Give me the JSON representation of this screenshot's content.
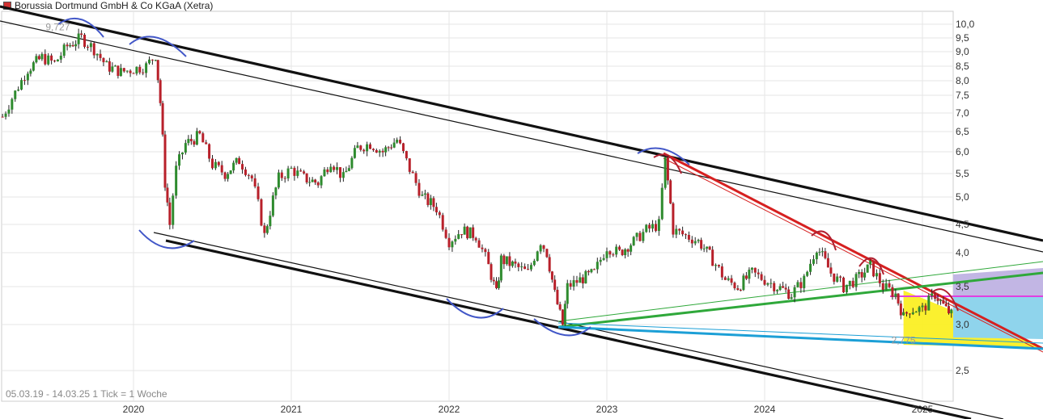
{
  "window": {
    "title": "Borussia Dortmund GmbH & Co KGaA (Xetra)"
  },
  "colors": {
    "marker": "#d03030",
    "up": "#2e8b2e",
    "down": "#b8202a",
    "wick": "#222222"
  },
  "chart_data": {
    "type": "candlestick",
    "title": "Borussia Dortmund GmbH & Co KGaA (Xetra)",
    "footer": "05.03.19 - 14.03.25   1 Tick = 1 Woche",
    "y_ticks": [
      "10,0",
      "9,5",
      "9,0",
      "8,5",
      "8,0",
      "7,5",
      "7,0",
      "6,5",
      "6,0",
      "5,5",
      "5,0",
      "4,5",
      "4,0",
      "3,5",
      "3,0",
      "2,5"
    ],
    "x_ticks": [
      "2020",
      "2021",
      "2022",
      "2023",
      "2024",
      "2025"
    ],
    "annotations": [
      {
        "text": "9,727",
        "x": 2019.52,
        "y": 9.727
      },
      {
        "text": "2,775",
        "x": 2024.88,
        "y": 2.775
      }
    ],
    "price_path": [
      [
        2019.17,
        6.9
      ],
      [
        2019.25,
        7.6
      ],
      [
        2019.33,
        8.4
      ],
      [
        2019.42,
        8.8
      ],
      [
        2019.5,
        8.6
      ],
      [
        2019.58,
        9.2
      ],
      [
        2019.67,
        9.5
      ],
      [
        2019.75,
        9.1
      ],
      [
        2019.83,
        8.5
      ],
      [
        2019.92,
        8.3
      ],
      [
        2020.0,
        8.4
      ],
      [
        2020.08,
        8.5
      ],
      [
        2020.14,
        8.9
      ],
      [
        2020.17,
        7.3
      ],
      [
        2020.2,
        5.3
      ],
      [
        2020.23,
        4.5
      ],
      [
        2020.27,
        5.6
      ],
      [
        2020.33,
        6.2
      ],
      [
        2020.42,
        6.4
      ],
      [
        2020.5,
        5.7
      ],
      [
        2020.58,
        5.5
      ],
      [
        2020.67,
        5.8
      ],
      [
        2020.75,
        5.4
      ],
      [
        2020.83,
        4.3
      ],
      [
        2020.92,
        5.4
      ],
      [
        2021.0,
        5.6
      ],
      [
        2021.08,
        5.4
      ],
      [
        2021.17,
        5.3
      ],
      [
        2021.25,
        5.8
      ],
      [
        2021.33,
        5.4
      ],
      [
        2021.42,
        6.1
      ],
      [
        2021.5,
        6.2
      ],
      [
        2021.58,
        6.0
      ],
      [
        2021.67,
        6.3
      ],
      [
        2021.75,
        5.6
      ],
      [
        2021.83,
        5.0
      ],
      [
        2021.92,
        4.8
      ],
      [
        2022.0,
        4.2
      ],
      [
        2022.08,
        4.4
      ],
      [
        2022.17,
        4.3
      ],
      [
        2022.25,
        3.8
      ],
      [
        2022.3,
        3.4
      ],
      [
        2022.33,
        3.9
      ],
      [
        2022.42,
        3.8
      ],
      [
        2022.5,
        3.7
      ],
      [
        2022.58,
        4.2
      ],
      [
        2022.62,
        4.0
      ],
      [
        2022.67,
        3.4
      ],
      [
        2022.72,
        3.0
      ],
      [
        2022.75,
        3.5
      ],
      [
        2022.83,
        3.6
      ],
      [
        2022.92,
        3.7
      ],
      [
        2023.0,
        4.1
      ],
      [
        2023.08,
        4.0
      ],
      [
        2023.17,
        4.2
      ],
      [
        2023.25,
        4.4
      ],
      [
        2023.33,
        4.5
      ],
      [
        2023.37,
        5.8
      ],
      [
        2023.42,
        4.4
      ],
      [
        2023.5,
        4.3
      ],
      [
        2023.58,
        4.2
      ],
      [
        2023.67,
        3.9
      ],
      [
        2023.75,
        3.6
      ],
      [
        2023.83,
        3.5
      ],
      [
        2023.92,
        3.7
      ],
      [
        2024.0,
        3.6
      ],
      [
        2024.08,
        3.5
      ],
      [
        2024.17,
        3.4
      ],
      [
        2024.25,
        3.6
      ],
      [
        2024.33,
        4.1
      ],
      [
        2024.42,
        3.7
      ],
      [
        2024.5,
        3.5
      ],
      [
        2024.58,
        3.6
      ],
      [
        2024.67,
        3.8
      ],
      [
        2024.75,
        3.5
      ],
      [
        2024.83,
        3.4
      ],
      [
        2024.88,
        3.1
      ],
      [
        2024.92,
        3.2
      ],
      [
        2025.0,
        3.2
      ],
      [
        2025.08,
        3.4
      ],
      [
        2025.15,
        3.2
      ],
      [
        2025.2,
        3.1
      ]
    ]
  }
}
